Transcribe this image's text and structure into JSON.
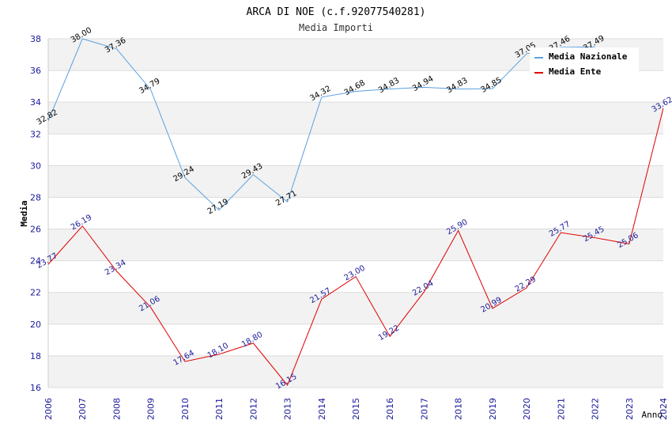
{
  "chart_data": {
    "type": "line",
    "title": "ARCA DI NOE (c.f.92077540281)",
    "subtitle": "Media Importi",
    "ylabel": "Media",
    "xlabel": "Anno",
    "ylim": [
      16,
      38
    ],
    "yticks": [
      16,
      18,
      20,
      22,
      24,
      26,
      28,
      30,
      32,
      34,
      36,
      38
    ],
    "x": [
      "2006",
      "2007",
      "2008",
      "2009",
      "2010",
      "2011",
      "2012",
      "2013",
      "2014",
      "2015",
      "2016",
      "2017",
      "2018",
      "2019",
      "2020",
      "2021",
      "2022",
      "2023",
      "2024"
    ],
    "series": [
      {
        "name": "Media Nazionale",
        "color": "#5aa0e0",
        "values": [
          32.82,
          38.0,
          37.36,
          34.79,
          29.24,
          27.19,
          29.43,
          27.71,
          34.32,
          34.68,
          34.83,
          34.94,
          34.83,
          34.85,
          37.05,
          37.46,
          37.49,
          null,
          null
        ],
        "labels": [
          "32.82",
          "38.00",
          "37.36",
          "34.79",
          "29.24",
          "27.19",
          "29.43",
          "27.71",
          "34.32",
          "34.68",
          "34.83",
          "34.94",
          "34.83",
          "34.85",
          "37.05",
          "37.46",
          "37.49",
          "",
          ""
        ]
      },
      {
        "name": "Media Ente",
        "color": "#e00000",
        "values": [
          23.77,
          26.19,
          23.34,
          21.06,
          17.64,
          18.1,
          18.8,
          16.15,
          21.57,
          23.0,
          19.22,
          22.04,
          25.9,
          20.99,
          22.29,
          25.77,
          25.45,
          25.06,
          33.62
        ],
        "labels": [
          "23.77",
          "26.19",
          "23.34",
          "21.06",
          "17.64",
          "18.10",
          "18.80",
          "16.15",
          "21.57",
          "23.00",
          "19.22",
          "22.04",
          "25.90",
          "20.99",
          "22.29",
          "25.77",
          "25.45",
          "25.06",
          "33.62"
        ]
      }
    ],
    "grid": true,
    "legend": "top-right"
  }
}
